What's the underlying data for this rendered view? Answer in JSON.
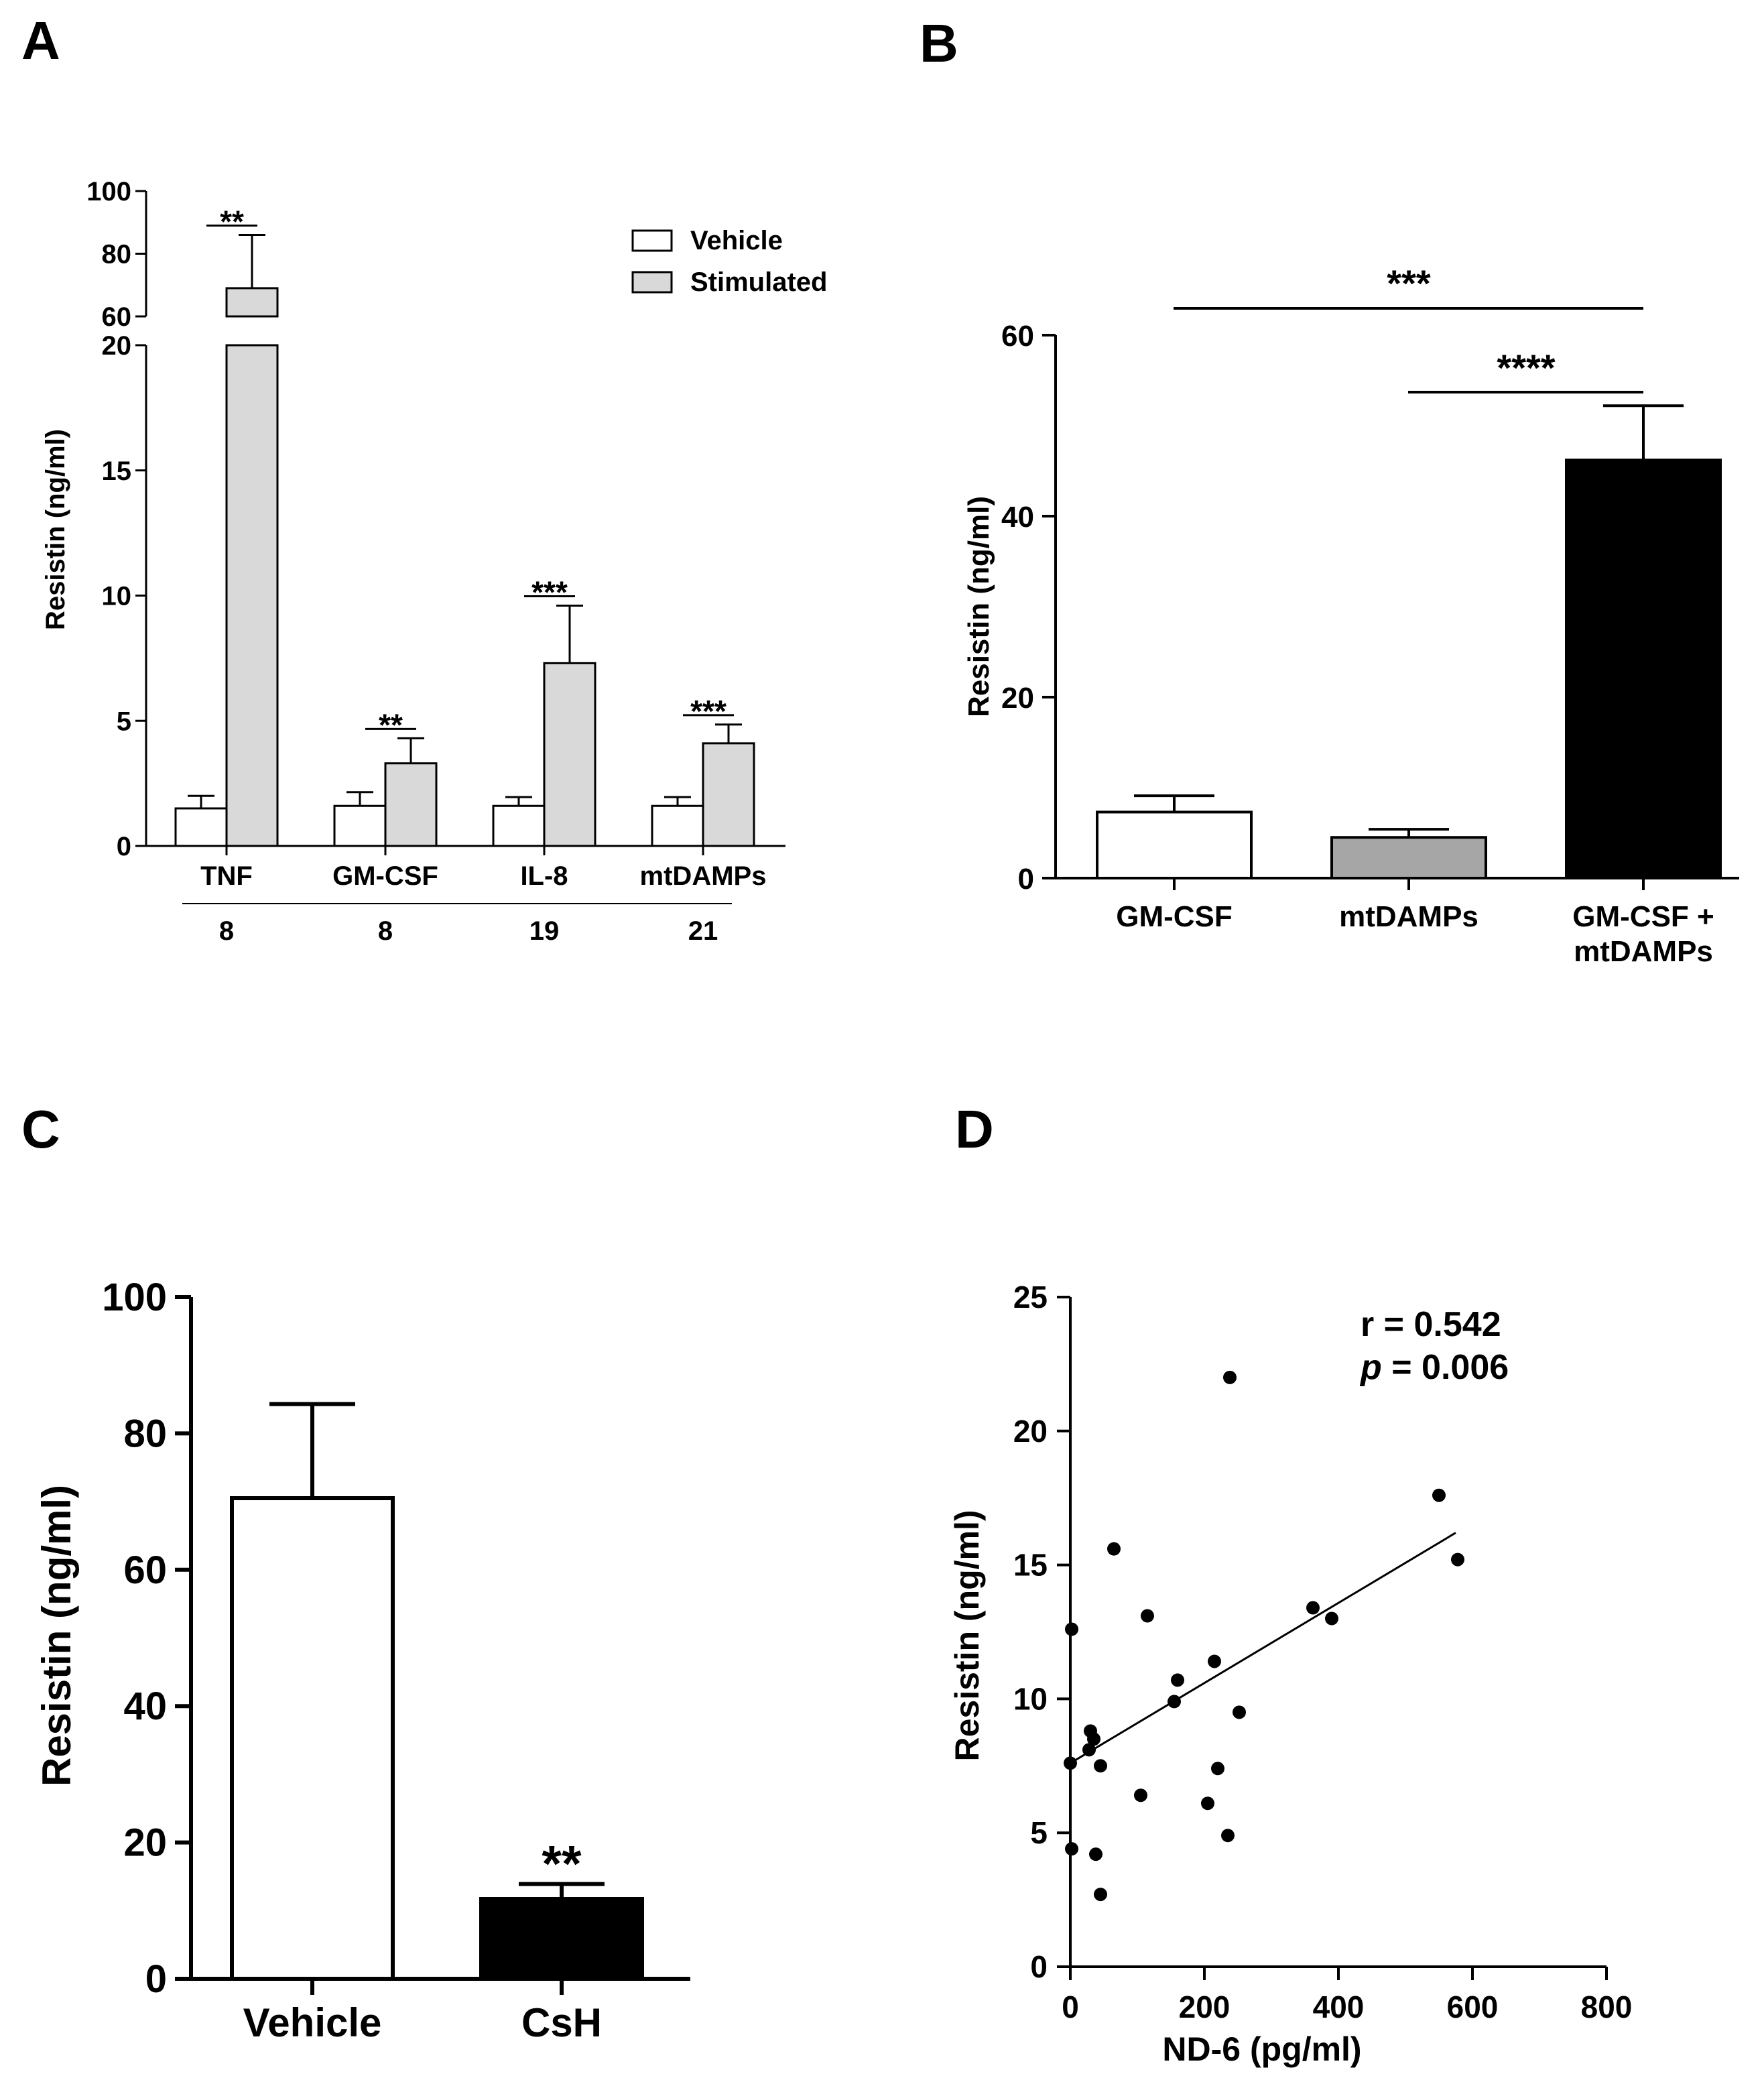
{
  "figure": {
    "panel_labels": [
      "A",
      "B",
      "C",
      "D"
    ]
  },
  "chart_data": [
    {
      "panel": "A",
      "type": "bar",
      "ylabel": "Resistin (ng/ml)",
      "categories": [
        "TNF",
        "GM-CSF",
        "IL-8",
        "mtDAMPs"
      ],
      "n_values": [
        "8",
        "8",
        "19",
        "21"
      ],
      "axis_break": {
        "lower_ylim": [
          0,
          20
        ],
        "upper_ylim": [
          60,
          100
        ]
      },
      "lower_yticks": [
        0,
        5,
        10,
        15,
        20
      ],
      "upper_yticks": [
        60,
        80,
        100
      ],
      "legend": {
        "placement": "top-right",
        "entries": [
          "Vehicle",
          "Stimulated"
        ]
      },
      "colors": {
        "Vehicle": "#ffffff",
        "Stimulated": "#d9d9d9"
      },
      "series": [
        {
          "name": "Vehicle",
          "values": [
            1.5,
            1.6,
            1.6,
            1.6
          ],
          "errors": [
            0.5,
            0.55,
            0.35,
            0.35
          ]
        },
        {
          "name": "Stimulated",
          "values": [
            69,
            3.3,
            7.3,
            4.1
          ],
          "errors": [
            17,
            1.0,
            2.3,
            0.75
          ]
        }
      ],
      "significance": [
        "**",
        "**",
        "***",
        "***"
      ]
    },
    {
      "panel": "B",
      "type": "bar",
      "ylabel": "Resistin (ng/ml)",
      "categories": [
        [
          "GM-CSF"
        ],
        [
          "mtDAMPs"
        ],
        [
          "GM-CSF +",
          "mtDAMPs"
        ]
      ],
      "values": [
        7.3,
        4.5,
        46.2
      ],
      "errors": [
        1.8,
        0.9,
        6
      ],
      "colors": [
        "#ffffff",
        "#a6a6a6",
        "#000000"
      ],
      "ylim": [
        0,
        60
      ],
      "yticks": [
        0,
        20,
        40,
        60
      ],
      "comparisons": [
        {
          "from": 0,
          "to": 2,
          "label": "***"
        },
        {
          "from": 1,
          "to": 2,
          "label": "****"
        }
      ]
    },
    {
      "panel": "C",
      "type": "bar",
      "ylabel": "Resistin (ng/ml)",
      "categories": [
        "Vehicle",
        "CsH"
      ],
      "values": [
        70.5,
        11.7
      ],
      "errors": [
        13.8,
        2.2
      ],
      "colors": [
        "#ffffff",
        "#000000"
      ],
      "ylim": [
        0,
        100
      ],
      "yticks": [
        0,
        20,
        40,
        60,
        80,
        100
      ],
      "significance": [
        "",
        "**"
      ]
    },
    {
      "panel": "D",
      "type": "scatter",
      "xlabel": "ND-6 (pg/ml)",
      "ylabel": "Resistin (ng/ml)",
      "xlim": [
        0,
        800
      ],
      "ylim": [
        0,
        25
      ],
      "xticks": [
        0,
        200,
        400,
        600,
        800
      ],
      "yticks": [
        0,
        5,
        10,
        15,
        20,
        25
      ],
      "stats": {
        "r_text": "r = 0.542",
        "p_symbol": "p",
        "p_value_text": " = 0.006"
      },
      "fit_line": {
        "x": [
          0,
          575
        ],
        "y": [
          7.6,
          16.2
        ]
      },
      "points": [
        {
          "x": 2,
          "y": 12.6
        },
        {
          "x": 0,
          "y": 7.6
        },
        {
          "x": 2,
          "y": 4.4
        },
        {
          "x": 30,
          "y": 8.8
        },
        {
          "x": 28,
          "y": 8.1
        },
        {
          "x": 35,
          "y": 8.5
        },
        {
          "x": 38,
          "y": 4.2
        },
        {
          "x": 45,
          "y": 7.5
        },
        {
          "x": 45,
          "y": 2.7
        },
        {
          "x": 65,
          "y": 15.6
        },
        {
          "x": 105,
          "y": 6.4
        },
        {
          "x": 115,
          "y": 13.1
        },
        {
          "x": 155,
          "y": 9.9
        },
        {
          "x": 160,
          "y": 10.7
        },
        {
          "x": 205,
          "y": 6.1
        },
        {
          "x": 215,
          "y": 11.4
        },
        {
          "x": 220,
          "y": 7.4
        },
        {
          "x": 235,
          "y": 4.9
        },
        {
          "x": 238,
          "y": 22.0
        },
        {
          "x": 252,
          "y": 9.5
        },
        {
          "x": 362,
          "y": 13.4
        },
        {
          "x": 390,
          "y": 13.0
        },
        {
          "x": 550,
          "y": 17.6
        },
        {
          "x": 578,
          "y": 15.2
        }
      ]
    }
  ]
}
